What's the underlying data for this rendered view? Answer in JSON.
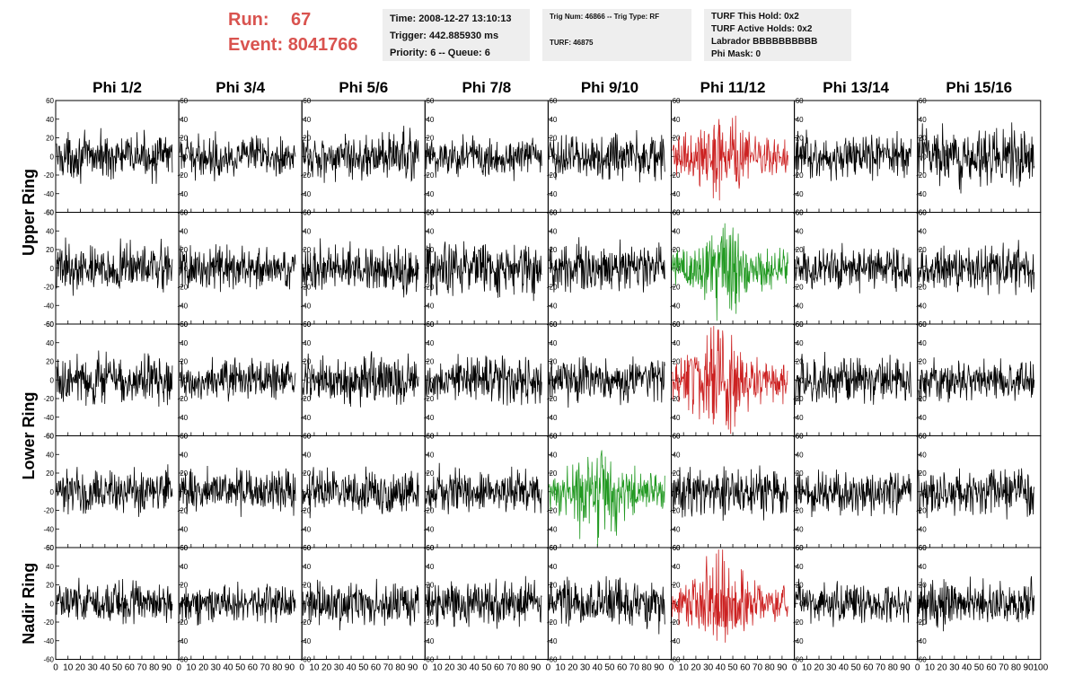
{
  "header": {
    "run_label": "Run:",
    "run_value": "67",
    "event_label": "Event:",
    "event_value": "8041766"
  },
  "time_box": {
    "time": "Time: 2008-12-27 13:10:13",
    "trigger": "Trigger: 442.885930 ms",
    "priority": "Priority: 6 -- Queue: 6"
  },
  "trig_box": {
    "trig": "Trig Num: 46866 -- Trig Type: RF",
    "turf": "TURF: 46875"
  },
  "turf_box": {
    "this_hold": "TURF This Hold: 0x2",
    "active_holds": "TURF Active Holds: 0x2",
    "labrador": "Labrador BBBBBBBBBB",
    "phi_mask": "Phi Mask: 0"
  },
  "chart_data": {
    "type": "line",
    "columns": [
      "Phi 1/2",
      "Phi 3/4",
      "Phi 5/6",
      "Phi 7/8",
      "Phi 9/10",
      "Phi 11/12",
      "Phi 13/14",
      "Phi 15/16"
    ],
    "row_labels": [
      {
        "text": "Upper Ring",
        "rows": [
          0,
          1
        ]
      },
      {
        "text": "Lower Ring",
        "rows": [
          2,
          3
        ]
      },
      {
        "text": "Nadir Ring",
        "rows": [
          4
        ]
      }
    ],
    "rows": 5,
    "xlim": [
      0,
      100
    ],
    "ylim": [
      -60,
      60
    ],
    "x_ticks": [
      0,
      10,
      20,
      30,
      40,
      50,
      60,
      70,
      80,
      90
    ],
    "last_x_tick": 100,
    "y_ticks": [
      -60,
      -40,
      -20,
      0,
      20,
      40,
      60
    ],
    "samples": 260,
    "colors": {
      "default": "#000000",
      "red": "#cc2222",
      "green": "#229922"
    },
    "channels": [
      {
        "row": 0,
        "col": 0,
        "color": "default",
        "amplitude": 11
      },
      {
        "row": 0,
        "col": 1,
        "color": "default",
        "amplitude": 10
      },
      {
        "row": 0,
        "col": 2,
        "color": "default",
        "amplitude": 12
      },
      {
        "row": 0,
        "col": 3,
        "color": "default",
        "amplitude": 11
      },
      {
        "row": 0,
        "col": 4,
        "color": "default",
        "amplitude": 12
      },
      {
        "row": 0,
        "col": 5,
        "color": "red",
        "amplitude": 12
      },
      {
        "row": 0,
        "col": 6,
        "color": "default",
        "amplitude": 11
      },
      {
        "row": 0,
        "col": 7,
        "color": "default",
        "amplitude": 14
      },
      {
        "row": 1,
        "col": 0,
        "color": "default",
        "amplitude": 12
      },
      {
        "row": 1,
        "col": 1,
        "color": "default",
        "amplitude": 11
      },
      {
        "row": 1,
        "col": 2,
        "color": "default",
        "amplitude": 12
      },
      {
        "row": 1,
        "col": 3,
        "color": "default",
        "amplitude": 13
      },
      {
        "row": 1,
        "col": 4,
        "color": "default",
        "amplitude": 12
      },
      {
        "row": 1,
        "col": 5,
        "color": "green",
        "amplitude": 13
      },
      {
        "row": 1,
        "col": 6,
        "color": "default",
        "amplitude": 11
      },
      {
        "row": 1,
        "col": 7,
        "color": "default",
        "amplitude": 12
      },
      {
        "row": 2,
        "col": 0,
        "color": "default",
        "amplitude": 13
      },
      {
        "row": 2,
        "col": 1,
        "color": "default",
        "amplitude": 10
      },
      {
        "row": 2,
        "col": 2,
        "color": "default",
        "amplitude": 12
      },
      {
        "row": 2,
        "col": 3,
        "color": "default",
        "amplitude": 12
      },
      {
        "row": 2,
        "col": 4,
        "color": "default",
        "amplitude": 11
      },
      {
        "row": 2,
        "col": 5,
        "color": "red",
        "amplitude": 15
      },
      {
        "row": 2,
        "col": 6,
        "color": "default",
        "amplitude": 12
      },
      {
        "row": 2,
        "col": 7,
        "color": "default",
        "amplitude": 10
      },
      {
        "row": 3,
        "col": 0,
        "color": "default",
        "amplitude": 12
      },
      {
        "row": 3,
        "col": 1,
        "color": "default",
        "amplitude": 11
      },
      {
        "row": 3,
        "col": 2,
        "color": "default",
        "amplitude": 11
      },
      {
        "row": 3,
        "col": 3,
        "color": "default",
        "amplitude": 11
      },
      {
        "row": 3,
        "col": 4,
        "color": "green",
        "amplitude": 14
      },
      {
        "row": 3,
        "col": 5,
        "color": "default",
        "amplitude": 12
      },
      {
        "row": 3,
        "col": 6,
        "color": "default",
        "amplitude": 11
      },
      {
        "row": 3,
        "col": 7,
        "color": "default",
        "amplitude": 13
      },
      {
        "row": 4,
        "col": 0,
        "color": "default",
        "amplitude": 11
      },
      {
        "row": 4,
        "col": 1,
        "color": "default",
        "amplitude": 10
      },
      {
        "row": 4,
        "col": 2,
        "color": "default",
        "amplitude": 11
      },
      {
        "row": 4,
        "col": 3,
        "color": "default",
        "amplitude": 12
      },
      {
        "row": 4,
        "col": 4,
        "color": "default",
        "amplitude": 12
      },
      {
        "row": 4,
        "col": 5,
        "color": "red",
        "amplitude": 13
      },
      {
        "row": 4,
        "col": 6,
        "color": "default",
        "amplitude": 11
      },
      {
        "row": 4,
        "col": 7,
        "color": "default",
        "amplitude": 11
      }
    ]
  }
}
